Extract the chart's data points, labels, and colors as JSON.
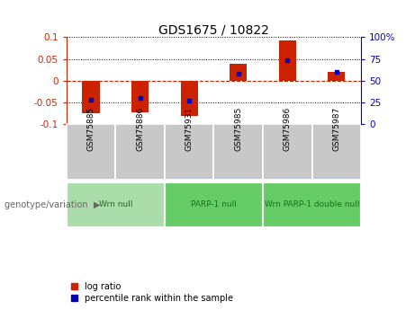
{
  "title": "GDS1675 / 10822",
  "samples": [
    "GSM75885",
    "GSM75886",
    "GSM75931",
    "GSM75985",
    "GSM75986",
    "GSM75987"
  ],
  "log_ratio": [
    -0.075,
    -0.073,
    -0.082,
    0.038,
    0.093,
    0.02
  ],
  "percentile_rank": [
    28,
    30,
    27,
    58,
    74,
    60
  ],
  "ylim_left": [
    -0.1,
    0.1
  ],
  "ylim_right": [
    0,
    100
  ],
  "yticks_left": [
    -0.1,
    -0.05,
    0,
    0.05,
    0.1
  ],
  "yticks_right": [
    0,
    25,
    50,
    75,
    100
  ],
  "ytick_labels_right": [
    "0",
    "25",
    "50",
    "75",
    "100%"
  ],
  "bar_color": "#CC2200",
  "dot_color": "#0000BB",
  "hline_color": "#CC2200",
  "grid_color": "#000000",
  "groups": [
    {
      "label": "Wrn null",
      "start": 0,
      "end": 2,
      "color": "#AADDAA"
    },
    {
      "label": "PARP-1 null",
      "start": 2,
      "end": 4,
      "color": "#66CC66"
    },
    {
      "label": "Wrn PARP-1 double null",
      "start": 4,
      "end": 6,
      "color": "#66CC66"
    }
  ],
  "sample_bg": "#C8C8C8",
  "sample_border": "#FFFFFF",
  "legend_red": "log ratio",
  "legend_blue": "percentile rank within the sample",
  "genotype_label": "genotype/variation"
}
